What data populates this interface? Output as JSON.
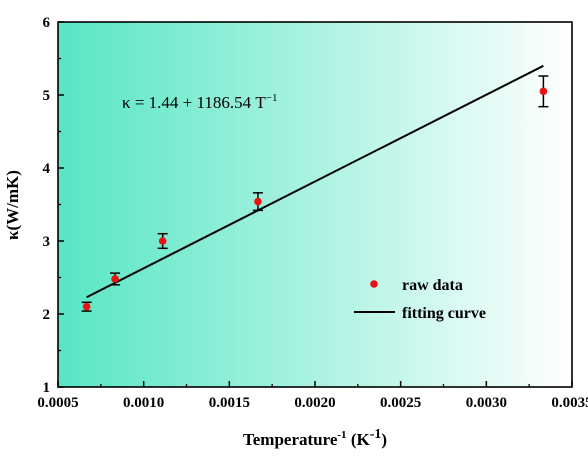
{
  "chart_data": {
    "type": "scatter",
    "xlabel": {
      "main": "Temperature",
      "exp": "-1",
      "unit_open": " (K",
      "unit_exp": "-1",
      "unit_close": ")"
    },
    "ylabel": "κ(W/mK)",
    "xlim": [
      0.0005,
      0.0035
    ],
    "ylim": [
      1,
      6
    ],
    "x_ticks": [
      0.0005,
      0.001,
      0.0015,
      0.002,
      0.0025,
      0.003,
      0.0035
    ],
    "x_tick_labels": [
      "0.0005",
      "0.0010",
      "0.0015",
      "0.0020",
      "0.0025",
      "0.0030",
      "0.0035"
    ],
    "y_ticks": [
      1,
      2,
      3,
      4,
      5,
      6
    ],
    "y_tick_labels": [
      "1",
      "2",
      "3",
      "4",
      "5",
      "6"
    ],
    "series": [
      {
        "name": "raw data",
        "kind": "points",
        "color": "#ee1111",
        "x": [
          0.000667,
          0.000833,
          0.001111,
          0.001667,
          0.003333
        ],
        "y": [
          2.1,
          2.48,
          3.0,
          3.54,
          5.05
        ],
        "error": [
          0.06,
          0.08,
          0.1,
          0.12,
          0.21
        ]
      },
      {
        "name": "fitting curve",
        "kind": "line",
        "color": "#000000",
        "x": [
          0.000667,
          0.003333
        ],
        "y": [
          2.23,
          5.4
        ]
      }
    ],
    "annotation": {
      "prefix": "κ = 1.44 + 1186.54 T",
      "sup": "−1"
    },
    "legend_position": "right",
    "background_gradient": [
      "#57e6c4",
      "#ffffff"
    ],
    "grid": false
  }
}
